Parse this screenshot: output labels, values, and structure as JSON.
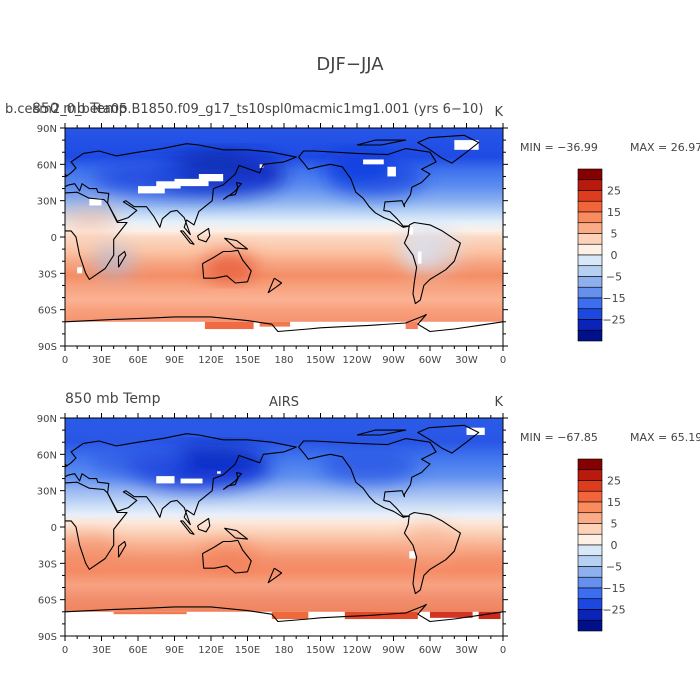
{
  "title": "DJF−JJA",
  "units": "K",
  "xticks": [
    "0",
    "30E",
    "60E",
    "90E",
    "120E",
    "150E",
    "180",
    "150W",
    "120W",
    "90W",
    "60W",
    "30W",
    "0"
  ],
  "yticks": [
    "90N",
    "60N",
    "30N",
    "0",
    "30S",
    "60S",
    "90S"
  ],
  "colorbar": {
    "labels": [
      "25",
      "15",
      "5",
      "0",
      "−5",
      "−15",
      "−25"
    ],
    "colors": [
      "#850000",
      "#b81a0d",
      "#dd3c1e",
      "#f2643a",
      "#f98c5f",
      "#fbab85",
      "#fdd2b8",
      "#fff0e6",
      "#d8e8f8",
      "#b6d0f2",
      "#8eb0ec",
      "#6690ee",
      "#3e6ef0",
      "#1a48e0",
      "#0a24b8",
      "#00108a"
    ]
  },
  "chart_data": [
    {
      "type": "heatmap",
      "panel": "model",
      "title_left": "b.cesm2_0_beta05.B1850.f09_g17_ts10spl0macmic1mg1.001 (yrs 6−10)",
      "title_left_overlay": "850 mb Temp",
      "title_center": "",
      "title_right": "K",
      "min_label": "MIN = −36.99",
      "max_label": "MAX =  26.97",
      "min": -36.99,
      "max": 26.97,
      "field": "DJF minus JJA 850 mb temperature",
      "x_range": [
        0,
        360
      ],
      "y_range": [
        -90,
        90
      ]
    },
    {
      "type": "heatmap",
      "panel": "obs",
      "title_left": "850 mb Temp",
      "title_center": "AIRS",
      "title_right": "K",
      "min_label": "MIN = −67.85",
      "max_label": "MAX =  65.19",
      "min": -67.85,
      "max": 65.19,
      "field": "DJF minus JJA 850 mb temperature",
      "x_range": [
        0,
        360
      ],
      "y_range": [
        -90,
        90
      ]
    }
  ]
}
